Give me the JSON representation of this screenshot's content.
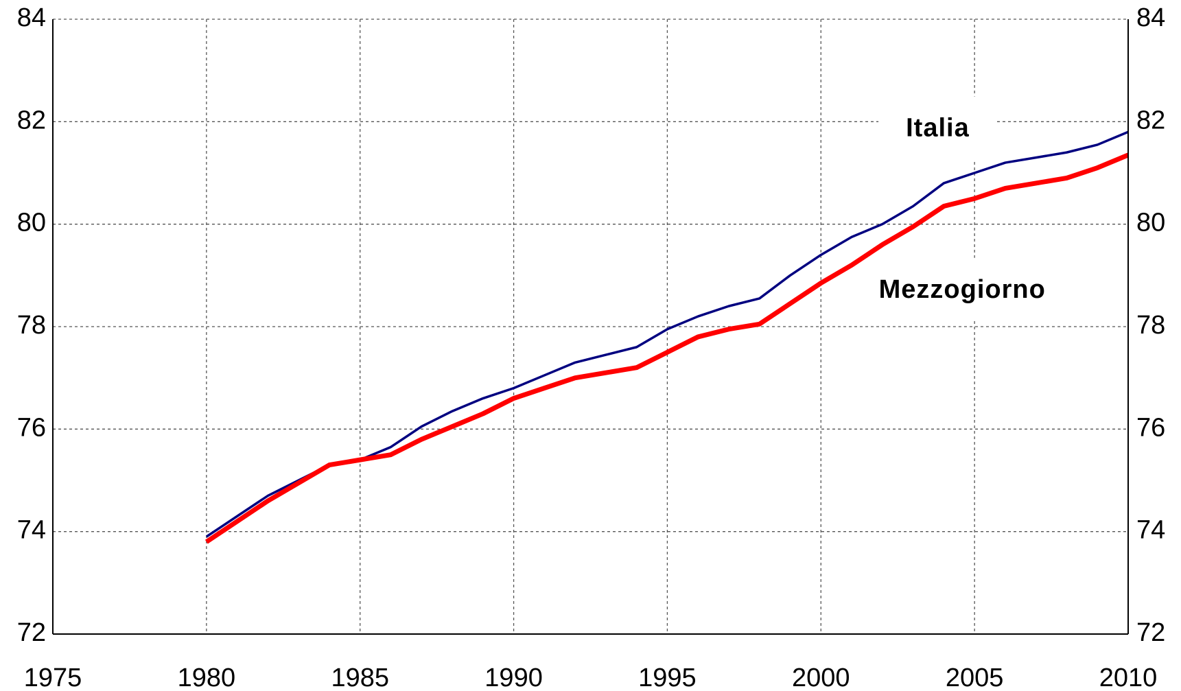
{
  "chart_data": {
    "type": "line",
    "x": [
      1980,
      1981,
      1982,
      1983,
      1984,
      1985,
      1986,
      1987,
      1988,
      1989,
      1990,
      1991,
      1992,
      1993,
      1994,
      1995,
      1996,
      1997,
      1998,
      1999,
      2000,
      2001,
      2002,
      2003,
      2004,
      2005,
      2006,
      2007,
      2008,
      2009,
      2010
    ],
    "series": [
      {
        "name": "Italia",
        "color": "#000080",
        "values": [
          73.9,
          74.3,
          74.7,
          75.0,
          75.3,
          75.4,
          75.65,
          76.05,
          76.35,
          76.6,
          76.8,
          77.05,
          77.3,
          77.45,
          77.6,
          77.95,
          78.2,
          78.4,
          78.55,
          79.0,
          79.4,
          79.75,
          80.0,
          80.35,
          80.8,
          81.0,
          81.2,
          81.3,
          81.4,
          81.55,
          81.8
        ]
      },
      {
        "name": "Mezzogiorno",
        "color": "#ff0000",
        "values": [
          73.8,
          74.2,
          74.6,
          74.95,
          75.3,
          75.4,
          75.5,
          75.8,
          76.05,
          76.3,
          76.6,
          76.8,
          77.0,
          77.1,
          77.2,
          77.5,
          77.8,
          77.95,
          78.05,
          78.45,
          78.85,
          79.2,
          79.6,
          79.95,
          80.35,
          80.5,
          80.7,
          80.8,
          80.9,
          81.1,
          81.35
        ]
      }
    ],
    "xlim": [
      1975,
      2010
    ],
    "xticks": [
      1975,
      1980,
      1985,
      1990,
      1995,
      2000,
      2005,
      2010
    ],
    "ylim": [
      72,
      84
    ],
    "yticks": [
      72,
      74,
      76,
      78,
      80,
      82,
      84
    ],
    "grid": true
  }
}
